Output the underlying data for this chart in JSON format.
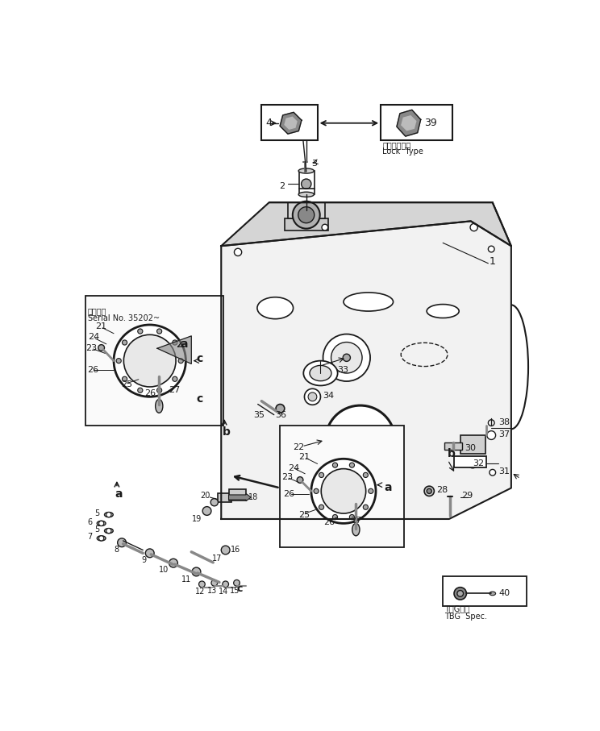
{
  "bg_color": "#ffffff",
  "lc": "#1a1a1a",
  "fig_w": 7.44,
  "fig_h": 9.07,
  "lock_type_jp": "ロックタイプ",
  "lock_type_en": "Lock  Type",
  "serial_jp": "適用番号",
  "serial_en": "Serial No. 35202~",
  "tbg_jp": "TジG仕様",
  "tbg_en": "TBG  Spec."
}
